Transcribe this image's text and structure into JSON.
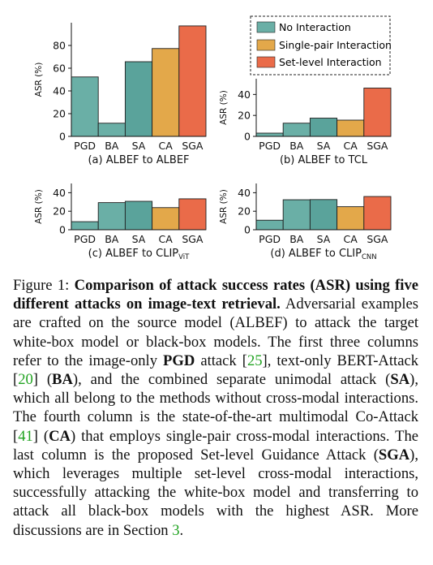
{
  "legend": {
    "items": [
      {
        "label": "No Interaction",
        "color": "#6aafa6"
      },
      {
        "label": "Single-pair Interaction",
        "color": "#e3a84a"
      },
      {
        "label": "Set-level Interaction",
        "color": "#ea6b49"
      }
    ]
  },
  "chart_data": [
    {
      "type": "bar",
      "title": "(a) ALBEF to ALBEF",
      "ylabel": "ASR (%)",
      "categories": [
        "PGD",
        "BA",
        "SA",
        "CA",
        "SGA"
      ],
      "values": [
        52.3,
        11.6,
        65.7,
        77.3,
        97.2
      ],
      "ylim": [
        0,
        100
      ],
      "yticks": [
        0,
        20,
        40,
        60,
        80
      ],
      "colors": [
        "#6aafa6",
        "#6aafa6",
        "#5aa39b",
        "#e3a84a",
        "#ea6b49"
      ]
    },
    {
      "type": "bar",
      "title": "(b) ALBEF to TCL",
      "ylabel": "ASR (%)",
      "categories": [
        "PGD",
        "BA",
        "SA",
        "CA",
        "SGA"
      ],
      "values": [
        3.1,
        12.6,
        17.4,
        15.5,
        46.1
      ],
      "ylim": [
        0,
        55
      ],
      "yticks": [
        0,
        20,
        40
      ],
      "colors": [
        "#6aafa6",
        "#6aafa6",
        "#5aa39b",
        "#e3a84a",
        "#ea6b49"
      ]
    },
    {
      "type": "bar",
      "title": "(c) ALBEF to CLIP",
      "title_sub": "ViT",
      "ylabel": "ASR (%)",
      "categories": [
        "PGD",
        "BA",
        "SA",
        "CA",
        "SGA"
      ],
      "values": [
        8.7,
        29.3,
        30.7,
        23.9,
        33.4
      ],
      "ylim": [
        0,
        50
      ],
      "yticks": [
        0,
        20,
        40
      ],
      "colors": [
        "#6aafa6",
        "#6aafa6",
        "#5aa39b",
        "#e3a84a",
        "#ea6b49"
      ]
    },
    {
      "type": "bar",
      "title": "(d) ALBEF to CLIP",
      "title_sub": "CNN",
      "ylabel": "ASR (%)",
      "categories": [
        "PGD",
        "BA",
        "SA",
        "CA",
        "SGA"
      ],
      "values": [
        10.3,
        32.4,
        32.6,
        24.9,
        35.9
      ],
      "ylim": [
        0,
        50
      ],
      "yticks": [
        0,
        20,
        40
      ],
      "colors": [
        "#6aafa6",
        "#6aafa6",
        "#5aa39b",
        "#e3a84a",
        "#ea6b49"
      ]
    }
  ],
  "caption": {
    "label": "Figure 1: ",
    "bold": "Comparison of attack success rates (ASR) using five different attacks on image-text retrieval.",
    "t1": " Adversarial examples are crafted on the source model (ALBEF) to attack the target white-box model or black-box models. The first three columns refer to the image-only ",
    "b_pgd": "PGD",
    "t2": " attack [",
    "r1": "25",
    "t3": "], text-only BERT-Attack [",
    "r2": "20",
    "t4": "] (",
    "b_ba": "BA",
    "t5": "), and the combined separate unimodal attack (",
    "b_sa": "SA",
    "t6": "), which all belong to the methods without cross-modal interactions. The fourth column is the state-of-the-art multimodal Co-Attack [",
    "r3": "41",
    "t7": "] (",
    "b_ca": "CA",
    "t8": ") that employs single-pair cross-modal interactions. The last column is the proposed Set-level Guidance Attack (",
    "b_sga": "SGA",
    "t9": "), which leverages multiple set-level cross-modal interactions, successfully attacking the white-box model and transferring to attack all black-box models with the highest ASR. More discussions are in Section ",
    "r4": "3",
    "t10": "."
  }
}
